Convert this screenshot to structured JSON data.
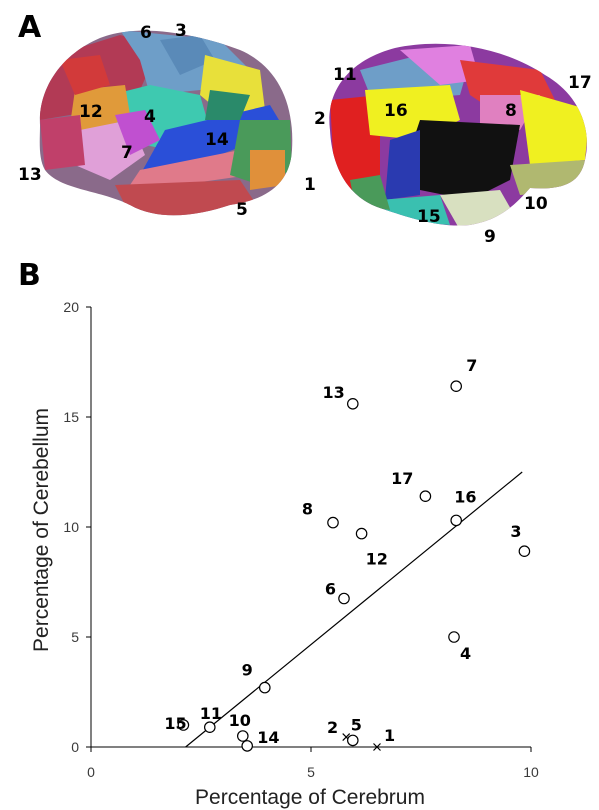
{
  "panel_a": {
    "letter": "A",
    "region_labels": [
      "1",
      "2",
      "3",
      "4",
      "5",
      "6",
      "7",
      "8",
      "9",
      "10",
      "11",
      "12",
      "13",
      "14",
      "15",
      "16",
      "17"
    ]
  },
  "panel_b": {
    "letter": "B"
  },
  "colors": {
    "marker": "#000000",
    "fit_line": "#000000",
    "axis": "#000000"
  },
  "chart_data": {
    "type": "scatter",
    "title": "",
    "xlabel": "Percentage of Cerebrum",
    "ylabel": "Percentage of Cerebellum",
    "xlim": [
      0,
      10
    ],
    "ylim": [
      0,
      20
    ],
    "xticks": [
      "0",
      "5",
      "10"
    ],
    "yticks": [
      "0",
      "5",
      "10",
      "15",
      "20"
    ],
    "grid": false,
    "points": [
      {
        "label": "1",
        "x": 6.5,
        "y": 0.0,
        "marker": "x"
      },
      {
        "label": "2",
        "x": 5.8,
        "y": 0.45,
        "marker": "x"
      },
      {
        "label": "3",
        "x": 9.85,
        "y": 8.9,
        "marker": "o"
      },
      {
        "label": "4",
        "x": 8.25,
        "y": 5.0,
        "marker": "o"
      },
      {
        "label": "5",
        "x": 5.95,
        "y": 0.3,
        "marker": "o"
      },
      {
        "label": "6",
        "x": 5.75,
        "y": 6.75,
        "marker": "o"
      },
      {
        "label": "7",
        "x": 8.3,
        "y": 16.4,
        "marker": "o"
      },
      {
        "label": "8",
        "x": 5.5,
        "y": 10.2,
        "marker": "o"
      },
      {
        "label": "9",
        "x": 3.95,
        "y": 2.7,
        "marker": "o"
      },
      {
        "label": "10",
        "x": 3.45,
        "y": 0.5,
        "marker": "o"
      },
      {
        "label": "11",
        "x": 2.7,
        "y": 0.9,
        "marker": "o"
      },
      {
        "label": "12",
        "x": 6.15,
        "y": 9.7,
        "marker": "o"
      },
      {
        "label": "13",
        "x": 5.95,
        "y": 15.6,
        "marker": "o"
      },
      {
        "label": "14",
        "x": 3.55,
        "y": 0.05,
        "marker": "o"
      },
      {
        "label": "15",
        "x": 2.1,
        "y": 1.0,
        "marker": "o"
      },
      {
        "label": "16",
        "x": 8.3,
        "y": 10.3,
        "marker": "o"
      },
      {
        "label": "17",
        "x": 7.6,
        "y": 11.4,
        "marker": "o"
      }
    ],
    "fit_line": {
      "x": [
        2.15,
        9.8
      ],
      "y": [
        0.0,
        12.5
      ]
    }
  }
}
